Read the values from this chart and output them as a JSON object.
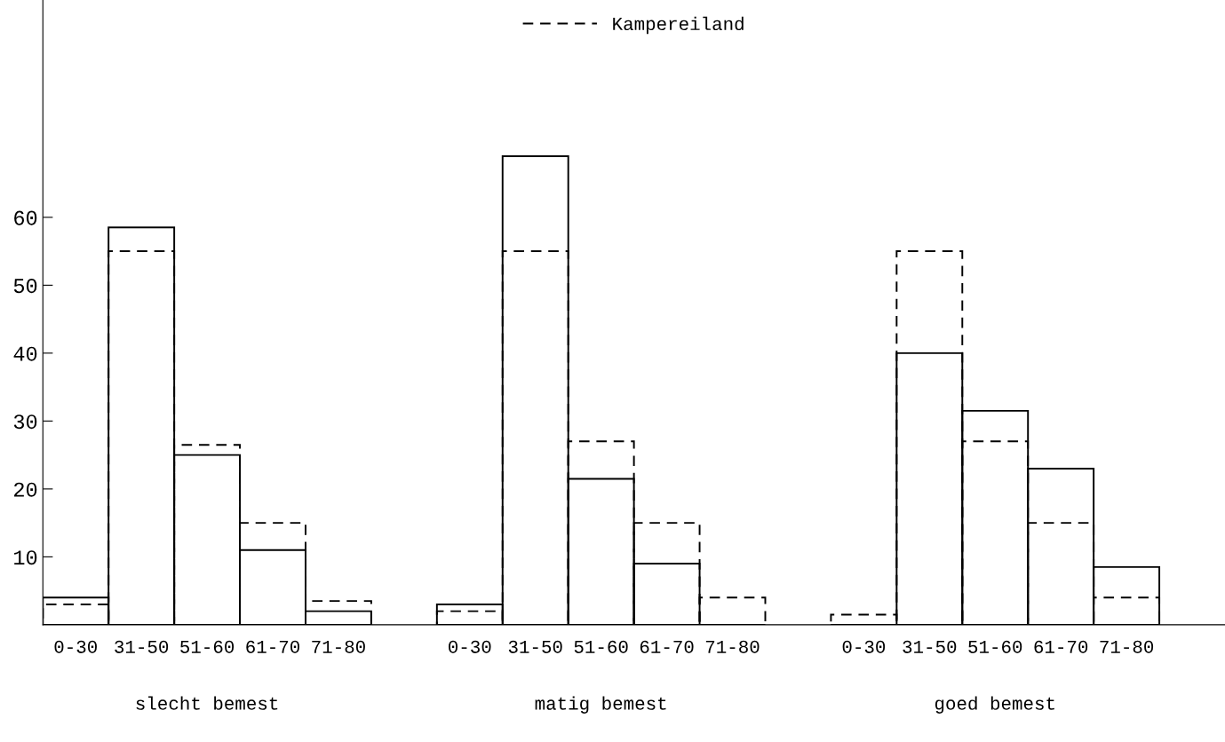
{
  "chart_data": {
    "type": "bar",
    "categories": [
      "0-30",
      "31-50",
      "51-60",
      "61-70",
      "71-80",
      null,
      "0-30",
      "31-50",
      "51-60",
      "61-70",
      "71-80",
      null,
      "0-30",
      "31-50",
      "51-60",
      "61-70",
      "71-80"
    ],
    "series": [
      {
        "color": "#000000",
        "line_style": "solid",
        "values": [
          4,
          58.5,
          25,
          11,
          2,
          null,
          3,
          69,
          21.5,
          9,
          0,
          null,
          0,
          40,
          31.5,
          23,
          8.5
        ]
      },
      {
        "name": "Kampereiland",
        "color": "#000000",
        "line_style": "dashed",
        "values": [
          3,
          55,
          26.5,
          15,
          3.5,
          null,
          2,
          55,
          27,
          15,
          4,
          null,
          1.5,
          55,
          27,
          15,
          4
        ]
      }
    ],
    "annotations": [
      "slecht bemest",
      "matig bemest",
      "goed bemest"
    ],
    "ylim": [
      0,
      92
    ],
    "yticks": [
      10,
      20,
      30,
      40,
      50,
      60
    ],
    "grid": false,
    "legend": "top"
  }
}
